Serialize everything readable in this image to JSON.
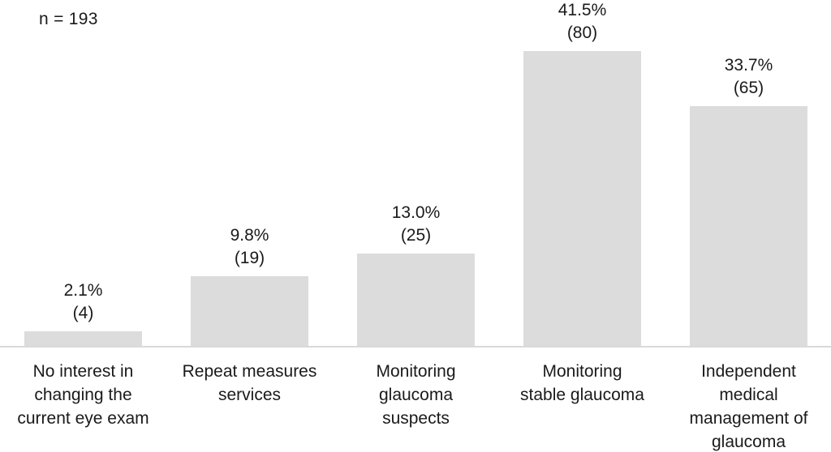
{
  "chart_data": {
    "type": "bar",
    "title": "",
    "annotation": "n = 193",
    "categories": [
      "No interest in changing the current eye exam",
      "Repeat measures services",
      "Monitoring glaucoma suspects",
      "Monitoring stable glaucoma",
      "Independent medical management of glaucoma"
    ],
    "category_label_lines": [
      [
        "No interest in",
        "changing the",
        "current eye exam"
      ],
      [
        "Repeat measures",
        "services"
      ],
      [
        "Monitoring",
        "glaucoma",
        "suspects"
      ],
      [
        "Monitoring",
        "stable glaucoma"
      ],
      [
        "Independent",
        "medical",
        "management of",
        "glaucoma"
      ]
    ],
    "values_percent": [
      2.1,
      9.8,
      13.0,
      41.5,
      33.7
    ],
    "counts": [
      4,
      19,
      25,
      80,
      65
    ],
    "percent_labels": [
      "2.1%",
      "9.8%",
      "13.0%",
      "41.5%",
      "33.7%"
    ],
    "count_labels": [
      "(4)",
      "(19)",
      "(25)",
      "(80)",
      "(65)"
    ],
    "xlabel": "",
    "ylabel": "",
    "ylim": [
      0,
      48.7
    ],
    "grid": false,
    "legend": false,
    "y_axis_shown": false,
    "value_label_position": "above-bars",
    "bar_color": "#dcdcdc",
    "axis_line_color": "#d9d9d9",
    "text_color": "#1a1a1a",
    "background_color": "#ffffff"
  }
}
